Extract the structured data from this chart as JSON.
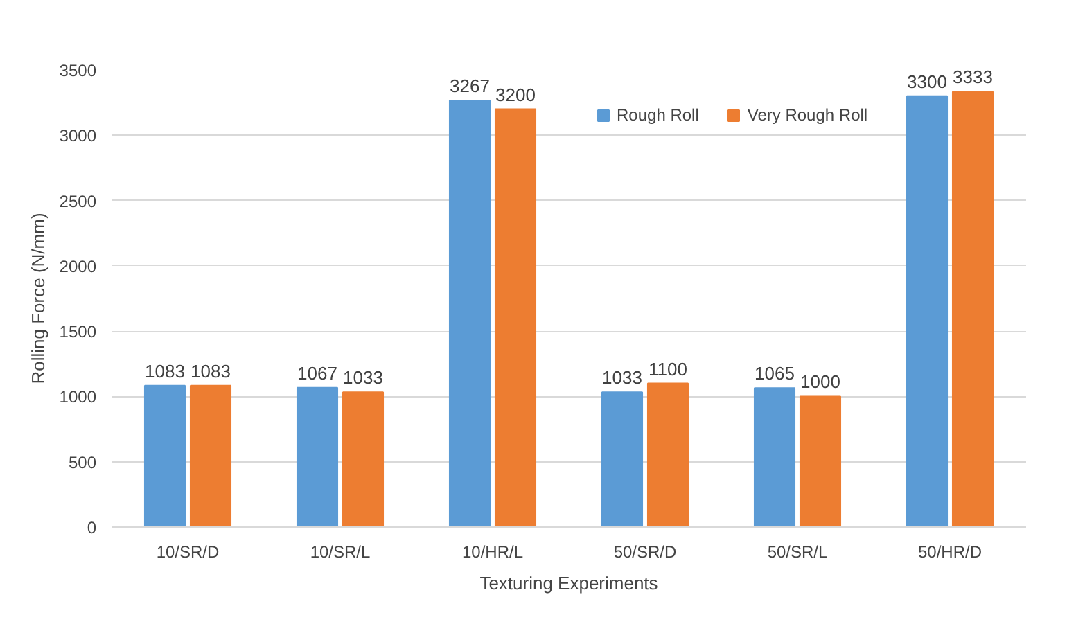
{
  "chart_data": {
    "type": "bar",
    "xlabel": "Texturing Experiments",
    "ylabel": "Rolling Force (N/mm)",
    "categories": [
      "10/SR/D",
      "10/SR/L",
      "10/HR/L",
      "50/SR/D",
      "50/SR/L",
      "50/HR/D"
    ],
    "series": [
      {
        "name": "Rough Roll",
        "color": "#5b9bd5",
        "values": [
          1083,
          1067,
          3267,
          1033,
          1065,
          3300
        ]
      },
      {
        "name": "Very Rough Roll",
        "color": "#ed7d31",
        "values": [
          1083,
          1033,
          3200,
          1100,
          1000,
          3333
        ]
      }
    ],
    "ylim": [
      0,
      3500
    ],
    "yticks": [
      0,
      500,
      1000,
      1500,
      2000,
      2500,
      3000,
      3500
    ],
    "grid": "y",
    "legend": "top",
    "data_labels": true
  }
}
